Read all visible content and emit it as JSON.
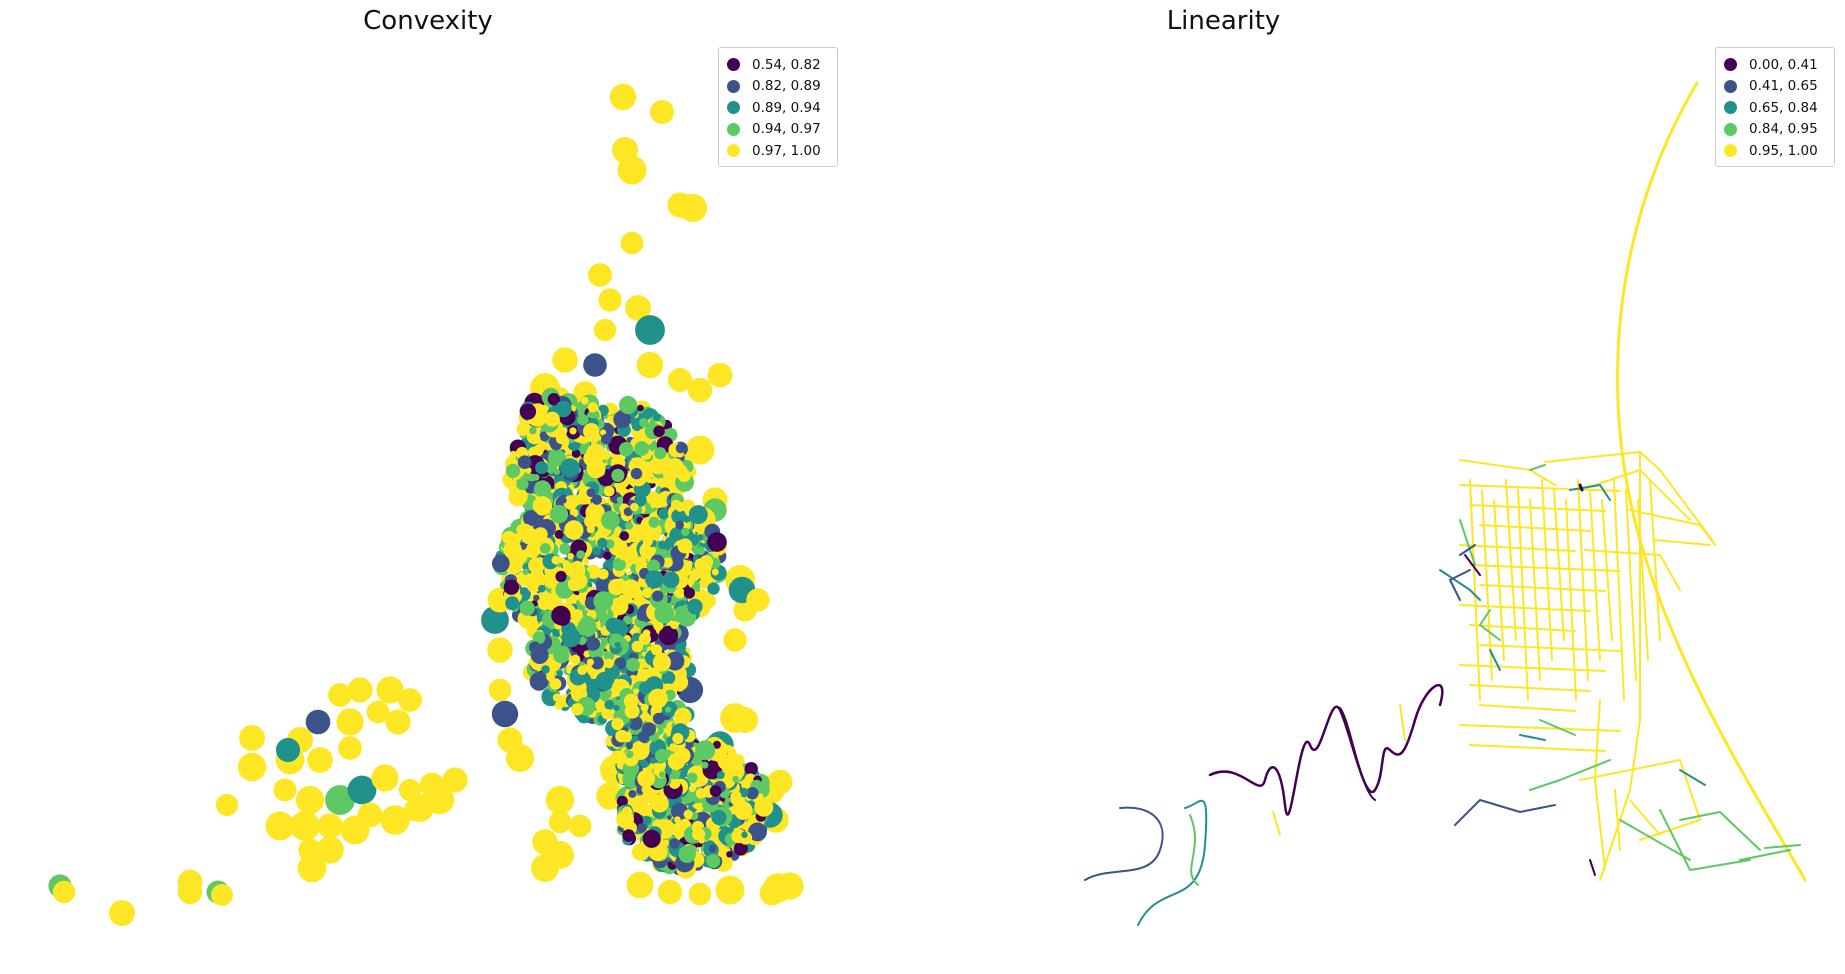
{
  "chart_data": [
    {
      "type": "choropleth-map",
      "title": "Convexity",
      "classification": "quantiles",
      "legend_position": "upper right",
      "legend": [
        {
          "label": "0.54, 0.82",
          "color": "#440154"
        },
        {
          "label": "0.82, 0.89",
          "color": "#3b528b"
        },
        {
          "label": "0.89, 0.94",
          "color": "#21918c"
        },
        {
          "label": "0.94, 0.97",
          "color": "#5ec962"
        },
        {
          "label": "0.97, 1.00",
          "color": "#fde725"
        }
      ],
      "axes": "off",
      "grid": false
    },
    {
      "type": "line-map",
      "title": "Linearity",
      "classification": "quantiles",
      "legend_position": "upper right",
      "legend": [
        {
          "label": "0.00, 0.41",
          "color": "#440154"
        },
        {
          "label": "0.41, 0.65",
          "color": "#3b528b"
        },
        {
          "label": "0.65, 0.84",
          "color": "#21918c"
        },
        {
          "label": "0.84, 0.95",
          "color": "#5ec962"
        },
        {
          "label": "0.95, 1.00",
          "color": "#fde725"
        }
      ],
      "axes": "off",
      "grid": false
    }
  ]
}
